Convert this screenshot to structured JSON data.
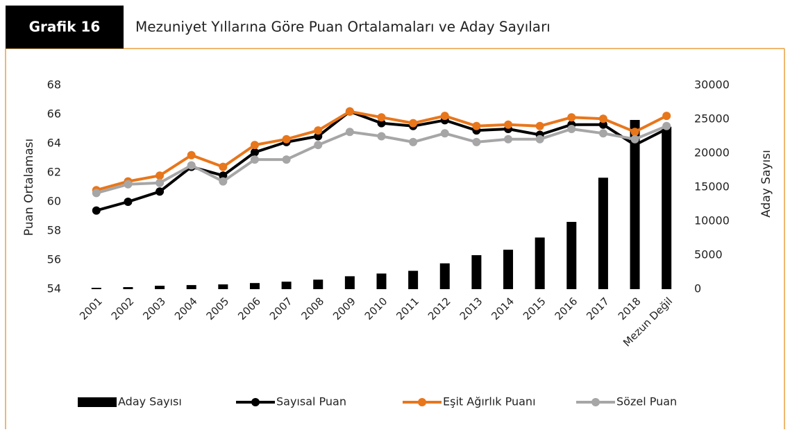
{
  "chart_data": {
    "type": "combo",
    "figure_label": "Grafik 16",
    "title": "Mezuniyet Yıllarına Göre Puan Ortalamaları ve Aday Sayıları",
    "y_label": "Puan Ortalaması",
    "y2_label": "Aday Sayısı",
    "categories": [
      "2001",
      "2002",
      "2003",
      "2004",
      "2005",
      "2006",
      "2007",
      "2008",
      "2009",
      "2010",
      "2011",
      "2012",
      "2013",
      "2014",
      "2015",
      "2016",
      "2017",
      "2018",
      "Mezun Değil"
    ],
    "series": [
      {
        "name": "Aday Sayısı",
        "type": "bar",
        "axis": "y2",
        "color": "#000000",
        "values": [
          200,
          300,
          500,
          600,
          700,
          900,
          1100,
          1400,
          1900,
          2300,
          2700,
          3800,
          5000,
          5800,
          7600,
          9900,
          16400,
          24900,
          23900
        ]
      },
      {
        "name": "Sayısal Puan",
        "type": "line",
        "color": "#000000",
        "values": [
          59.4,
          60.0,
          60.7,
          62.4,
          61.8,
          63.4,
          64.1,
          64.5,
          66.2,
          65.4,
          65.2,
          65.6,
          64.9,
          65.0,
          64.6,
          65.3,
          65.3,
          63.9,
          65.0
        ]
      },
      {
        "name": "Eşit Ağırlık Puanı",
        "type": "line",
        "color": "#e8761b",
        "values": [
          60.8,
          61.4,
          61.8,
          63.2,
          62.4,
          63.9,
          64.3,
          64.9,
          66.2,
          65.8,
          65.4,
          65.9,
          65.2,
          65.3,
          65.2,
          65.8,
          65.7,
          64.8,
          65.9
        ]
      },
      {
        "name": "Sözel Puan",
        "type": "line",
        "color": "#a6a6a6",
        "values": [
          60.6,
          61.2,
          61.3,
          62.5,
          61.4,
          62.9,
          62.9,
          63.9,
          64.8,
          64.5,
          64.1,
          64.7,
          64.1,
          64.3,
          64.3,
          65.0,
          64.7,
          64.3,
          65.2
        ]
      }
    ],
    "ylim": [
      54,
      68
    ],
    "yticks": [
      54,
      56,
      58,
      60,
      62,
      64,
      66,
      68
    ],
    "y2lim": [
      0,
      30000
    ],
    "y2ticks": [
      0,
      5000,
      10000,
      15000,
      20000,
      25000,
      30000
    ],
    "grid": false,
    "legend": "bottom"
  }
}
